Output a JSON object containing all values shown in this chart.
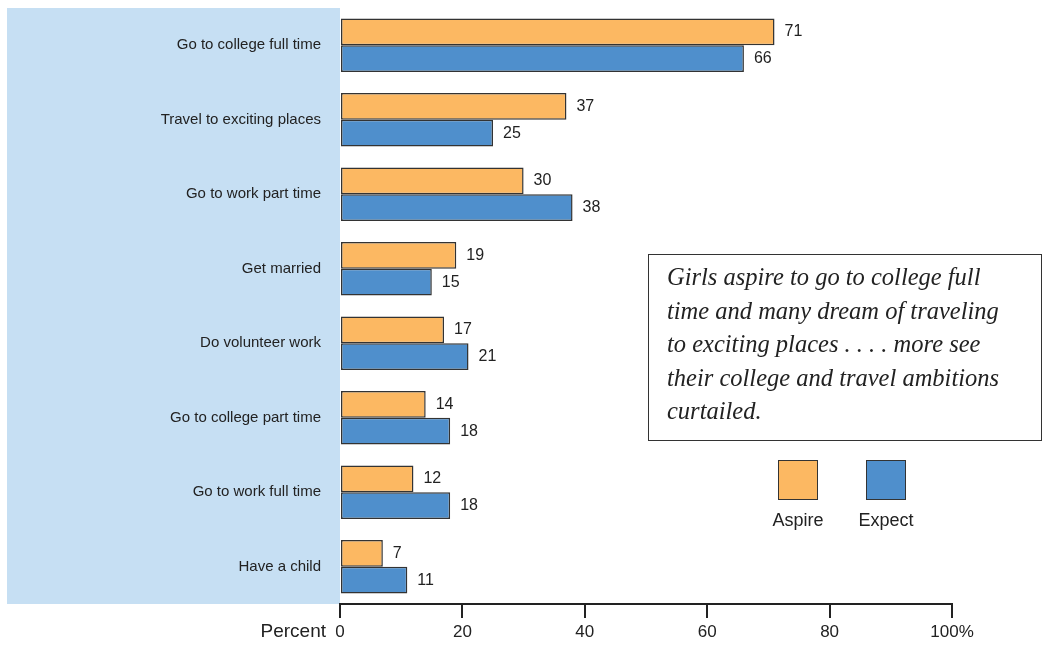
{
  "chart_data": {
    "type": "bar",
    "orientation": "horizontal",
    "categories": [
      "Go to college full time",
      "Travel to exciting places",
      "Go to work part time",
      "Get married",
      "Do volunteer work",
      "Go to college part time",
      "Go to work full time",
      "Have a child"
    ],
    "series": [
      {
        "name": "Aspire",
        "color": "#fcb862",
        "values": [
          71,
          37,
          30,
          19,
          17,
          14,
          12,
          7
        ]
      },
      {
        "name": "Expect",
        "color": "#4f8fcc",
        "values": [
          66,
          25,
          38,
          15,
          21,
          18,
          18,
          11
        ]
      }
    ],
    "xlim": [
      0,
      100
    ],
    "xticks": [
      0,
      20,
      40,
      60,
      80,
      {
        "value": 100,
        "label": "100%"
      }
    ],
    "xlabel": "Percent",
    "data_labels": true,
    "legend": "bottom right",
    "grid": false,
    "annotations": [
      "Girls aspire to go to college full time and many dream of traveling to exciting places . . . . more see their college and travel ambitions curtailed."
    ]
  }
}
